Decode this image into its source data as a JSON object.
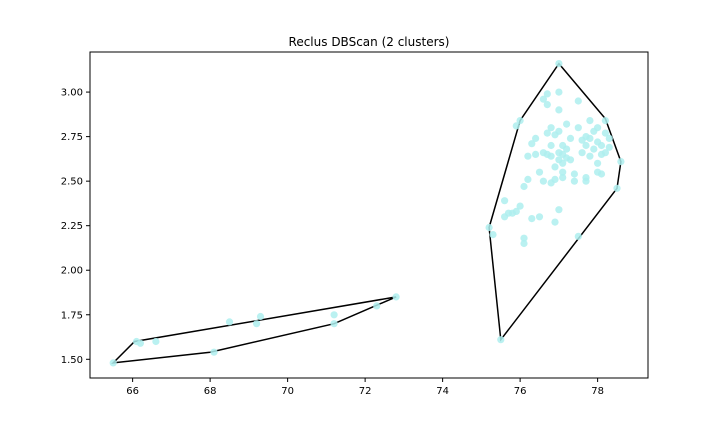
{
  "chart_data": {
    "type": "scatter",
    "title": "Reclus DBScan (2 clusters)",
    "xlabel": "",
    "ylabel": "",
    "xlim": [
      64.9,
      79.3
    ],
    "ylim": [
      1.395,
      3.225
    ],
    "xticks": [
      66,
      68,
      70,
      72,
      74,
      76,
      78
    ],
    "xtick_labels": [
      "66",
      "68",
      "70",
      "72",
      "74",
      "76",
      "78"
    ],
    "yticks": [
      1.5,
      1.75,
      2.0,
      2.25,
      2.5,
      2.75,
      3.0
    ],
    "ytick_labels": [
      "1.50",
      "1.75",
      "2.00",
      "2.25",
      "2.50",
      "2.75",
      "3.00"
    ],
    "point_color": "#aeeeee",
    "hull_color": "#000000",
    "grid": false,
    "series": [
      {
        "points": [
          [
            65.5,
            1.48
          ],
          [
            66.1,
            1.6
          ],
          [
            66.2,
            1.59
          ],
          [
            66.6,
            1.6
          ],
          [
            68.1,
            1.54
          ],
          [
            68.5,
            1.71
          ],
          [
            69.2,
            1.7
          ],
          [
            69.3,
            1.74
          ],
          [
            71.2,
            1.75
          ],
          [
            71.2,
            1.7
          ],
          [
            72.3,
            1.8
          ],
          [
            72.8,
            1.85
          ]
        ],
        "hull": [
          [
            65.5,
            1.48
          ],
          [
            68.0,
            1.54
          ],
          [
            71.2,
            1.7
          ],
          [
            72.8,
            1.85
          ],
          [
            66.05,
            1.6
          ]
        ]
      },
      {
        "points": [
          [
            75.2,
            2.24
          ],
          [
            75.3,
            2.2
          ],
          [
            75.5,
            1.61
          ],
          [
            75.6,
            2.39
          ],
          [
            75.6,
            2.3
          ],
          [
            75.7,
            2.32
          ],
          [
            75.8,
            2.32
          ],
          [
            75.9,
            2.33
          ],
          [
            76.0,
            2.36
          ],
          [
            75.9,
            2.81
          ],
          [
            76.0,
            2.84
          ],
          [
            76.1,
            2.18
          ],
          [
            76.1,
            2.15
          ],
          [
            76.1,
            2.47
          ],
          [
            76.2,
            2.51
          ],
          [
            76.3,
            2.29
          ],
          [
            76.2,
            2.64
          ],
          [
            76.3,
            2.71
          ],
          [
            76.4,
            2.65
          ],
          [
            76.4,
            2.74
          ],
          [
            76.5,
            2.3
          ],
          [
            76.5,
            2.55
          ],
          [
            76.6,
            2.5
          ],
          [
            76.6,
            2.66
          ],
          [
            76.6,
            2.96
          ],
          [
            76.7,
            2.93
          ],
          [
            76.7,
            2.99
          ],
          [
            76.7,
            2.77
          ],
          [
            76.7,
            2.65
          ],
          [
            76.8,
            2.64
          ],
          [
            76.8,
            2.8
          ],
          [
            76.8,
            2.7
          ],
          [
            76.8,
            2.49
          ],
          [
            76.9,
            2.51
          ],
          [
            76.9,
            2.58
          ],
          [
            76.9,
            2.27
          ],
          [
            76.9,
            2.76
          ],
          [
            77.0,
            2.34
          ],
          [
            77.0,
            2.62
          ],
          [
            77.0,
            2.66
          ],
          [
            77.0,
            3.0
          ],
          [
            77.0,
            2.9
          ],
          [
            77.0,
            2.78
          ],
          [
            77.0,
            3.16
          ],
          [
            77.1,
            2.55
          ],
          [
            77.1,
            2.6
          ],
          [
            77.1,
            2.65
          ],
          [
            77.1,
            2.52
          ],
          [
            77.1,
            2.7
          ],
          [
            77.2,
            2.63
          ],
          [
            77.2,
            2.68
          ],
          [
            77.2,
            2.82
          ],
          [
            77.3,
            2.74
          ],
          [
            77.3,
            2.62
          ],
          [
            77.4,
            2.5
          ],
          [
            77.4,
            2.54
          ],
          [
            77.5,
            2.95
          ],
          [
            77.5,
            2.8
          ],
          [
            77.5,
            2.19
          ],
          [
            77.6,
            2.66
          ],
          [
            77.6,
            2.73
          ],
          [
            77.7,
            2.52
          ],
          [
            77.7,
            2.5
          ],
          [
            77.7,
            2.75
          ],
          [
            77.7,
            2.7
          ],
          [
            77.8,
            2.64
          ],
          [
            77.8,
            2.84
          ],
          [
            77.8,
            2.74
          ],
          [
            77.9,
            2.78
          ],
          [
            77.9,
            2.68
          ],
          [
            78.0,
            2.8
          ],
          [
            78.0,
            2.72
          ],
          [
            78.0,
            2.6
          ],
          [
            78.0,
            2.55
          ],
          [
            78.1,
            2.65
          ],
          [
            78.1,
            2.7
          ],
          [
            78.1,
            2.54
          ],
          [
            78.2,
            2.77
          ],
          [
            78.2,
            2.66
          ],
          [
            78.2,
            2.84
          ],
          [
            78.3,
            2.69
          ],
          [
            78.3,
            2.74
          ],
          [
            78.5,
            2.46
          ],
          [
            78.6,
            2.61
          ]
        ],
        "hull": [
          [
            77.0,
            3.16
          ],
          [
            78.2,
            2.85
          ],
          [
            78.6,
            2.61
          ],
          [
            78.5,
            2.46
          ],
          [
            75.5,
            1.61
          ],
          [
            75.2,
            2.24
          ],
          [
            76.0,
            2.84
          ]
        ]
      }
    ]
  }
}
